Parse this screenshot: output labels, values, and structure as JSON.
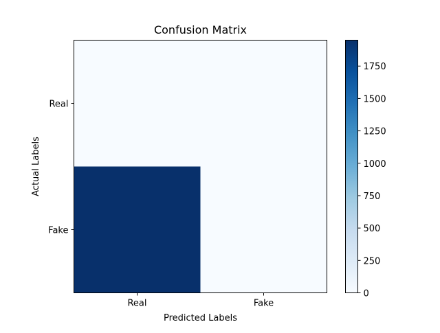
{
  "chart_data": {
    "type": "heatmap",
    "title": "Confusion Matrix",
    "xlabel": "Predicted Labels",
    "ylabel": "Actual Labels",
    "x_categories": [
      "Real",
      "Fake"
    ],
    "y_categories": [
      "Real",
      "Fake"
    ],
    "values": [
      [
        0,
        0
      ],
      [
        1950,
        0
      ]
    ],
    "colorbar": {
      "min": 0,
      "max": 1950,
      "ticks": [
        0,
        250,
        500,
        750,
        1000,
        1250,
        1500,
        1750
      ],
      "colormap": "Blues",
      "low_color": "#f7fbff",
      "high_color": "#08306b"
    },
    "grid": false
  }
}
